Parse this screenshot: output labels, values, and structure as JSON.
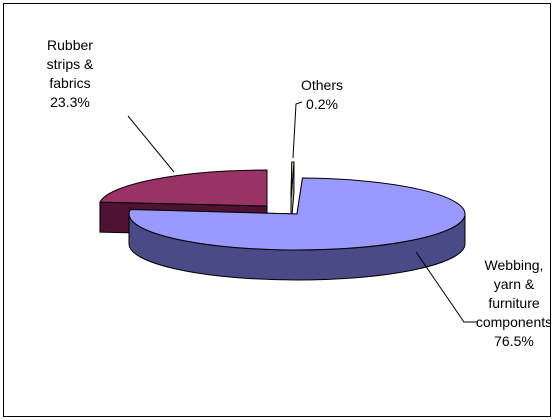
{
  "chart_data": {
    "type": "pie",
    "style": "3d-exploded",
    "slices": [
      {
        "key": "webbing",
        "label_lines": [
          "Webbing,",
          "yarn &",
          "furniture",
          "components"
        ],
        "pct_text": "76.5%",
        "value": 76.5,
        "color": "#9999FF",
        "side_color": "#4A4A86"
      },
      {
        "key": "rubber",
        "label_lines": [
          "Rubber",
          "strips &",
          "fabrics"
        ],
        "pct_text": "23.3%",
        "value": 23.3,
        "color": "#993366",
        "side_color": "#4D1330"
      },
      {
        "key": "others",
        "label_lines": [
          "Others"
        ],
        "pct_text": "0.2%",
        "value": 0.2,
        "color": "#FFFFCC",
        "side_color": "#B3B38C"
      }
    ],
    "legend": "none"
  }
}
